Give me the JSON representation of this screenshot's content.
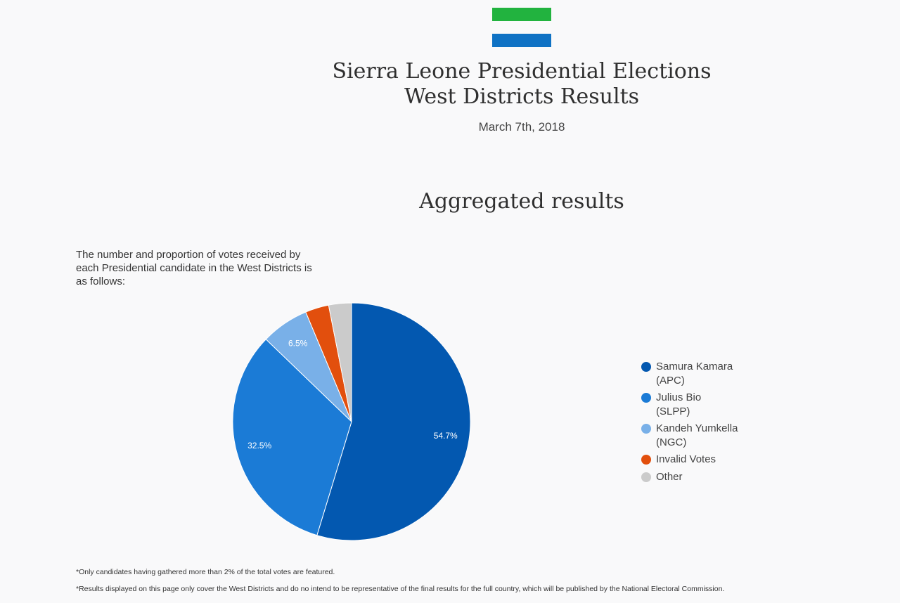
{
  "flag": {
    "top_color": "#22b33f",
    "bottom_color": "#0f72c4"
  },
  "header": {
    "title_line1": "Sierra Leone Presidential Elections",
    "title_line2": "West Districts Results",
    "date": "March 7th, 2018"
  },
  "section": {
    "title": "Aggregated results",
    "intro": "The number and proportion of votes received by each Presidential candidate in the West Districts is as follows:"
  },
  "chart_data": {
    "type": "pie",
    "title": "",
    "categories": [
      "Samura Kamara (APC)",
      "Julius Bio (SLPP)",
      "Kandeh Yumkella (NGC)",
      "Invalid Votes",
      "Other"
    ],
    "values": [
      54.7,
      32.5,
      6.5,
      3.2,
      3.1
    ],
    "data_labels": [
      "54.7%",
      "32.5%",
      "6.5%",
      "",
      ""
    ],
    "colors": [
      "#0358b0",
      "#1b7bd6",
      "#79b0e8",
      "#e24f0d",
      "#cbcbcb"
    ],
    "legend_placement": "right"
  },
  "legend": [
    {
      "label": "Samura Kamara\n(APC)",
      "color": "#0358b0"
    },
    {
      "label": "Julius Bio\n(SLPP)",
      "color": "#1b7bd6"
    },
    {
      "label": "Kandeh Yumkella\n(NGC)",
      "color": "#79b0e8"
    },
    {
      "label": "Invalid Votes",
      "color": "#e24f0d"
    },
    {
      "label": "Other",
      "color": "#cbcbcb"
    }
  ],
  "footnotes": {
    "note1": "*Only candidates having gathered more than 2% of the total votes are featured.",
    "note2": "*Results displayed on this page only cover the West Districts and do no intend to be representative of the final results for the full country, which will be published by the National Electoral Commission."
  }
}
